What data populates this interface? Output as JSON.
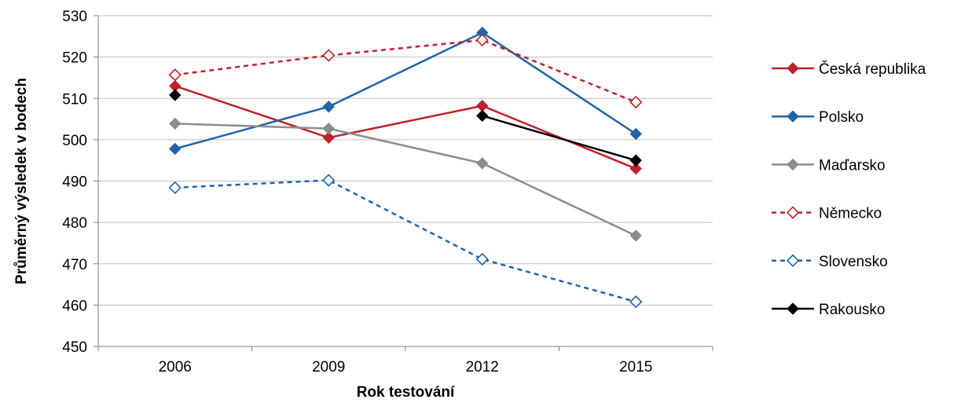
{
  "chart_data": {
    "type": "line",
    "xlabel": "Rok testování",
    "ylabel": "Průměrný výsledek v bodech",
    "ylim": [
      450,
      530
    ],
    "yticks": [
      450,
      460,
      470,
      480,
      490,
      500,
      510,
      520,
      530
    ],
    "categories": [
      "2006",
      "2009",
      "2012",
      "2015"
    ],
    "grid": "horizontal",
    "legend_position": "right",
    "series": [
      {
        "name": "Česká republika",
        "color": "#C0202A",
        "dashed": false,
        "marker": "filled-diamond",
        "values": [
          513,
          500.5,
          508.2,
          493
        ]
      },
      {
        "name": "Polsko",
        "color": "#1F63A8",
        "dashed": false,
        "marker": "filled-diamond",
        "values": [
          497.8,
          508,
          525.9,
          501.4
        ]
      },
      {
        "name": "Maďarsko",
        "color": "#8C8C8C",
        "dashed": false,
        "marker": "filled-diamond",
        "values": [
          503.9,
          502.7,
          494.3,
          476.8
        ]
      },
      {
        "name": "Německo",
        "color": "#C0202A",
        "dashed": true,
        "marker": "open-diamond",
        "values": [
          515.7,
          520.4,
          524.1,
          509.1
        ]
      },
      {
        "name": "Slovensko",
        "color": "#1F63A8",
        "dashed": true,
        "marker": "open-diamond",
        "values": [
          488.4,
          490.2,
          471.1,
          460.8
        ]
      },
      {
        "name": "Rakousko",
        "color": "#000000",
        "dashed": false,
        "marker": "filled-diamond",
        "values": [
          510.8,
          null,
          505.8,
          495
        ]
      }
    ]
  }
}
